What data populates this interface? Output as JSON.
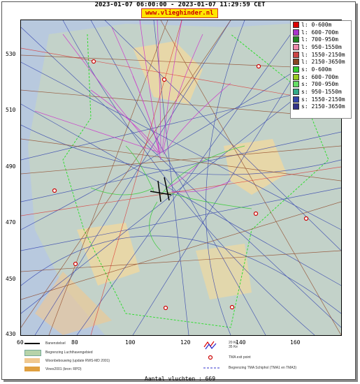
{
  "header": {
    "title": "2023-01-07 06:00:00 - 2023-01-07 11:29:59 CET",
    "url": "www.vlieghinder.nl"
  },
  "axes": {
    "y_ticks": [
      "530",
      "510",
      "490",
      "470",
      "450",
      "430"
    ],
    "x_ticks": [
      "60",
      "80",
      "100",
      "120",
      "140",
      "160"
    ]
  },
  "legend": {
    "items": [
      {
        "label": "l: 0-600m",
        "color": "#dd0000"
      },
      {
        "label": "l: 600-700m",
        "color": "#aa33cc"
      },
      {
        "label": "l: 700-950m",
        "color": "#228822"
      },
      {
        "label": "l: 950-1550m",
        "color": "#ee88aa"
      },
      {
        "label": "l: 1550-2150m",
        "color": "#cc4444"
      },
      {
        "label": "l: 2150-3650m",
        "color": "#884422"
      },
      {
        "label": "s: 0-600m",
        "color": "#33cc33"
      },
      {
        "label": "s: 600-700m",
        "color": "#99cc22"
      },
      {
        "label": "s: 700-950m",
        "color": "#66dd66"
      },
      {
        "label": "s: 950-1550m",
        "color": "#33aa88"
      },
      {
        "label": "s: 1550-2150m",
        "color": "#3344aa"
      },
      {
        "label": "s: 2150-3650m",
        "color": "#333388"
      }
    ]
  },
  "map_legend": {
    "left": [
      {
        "label": "Banenstelsel",
        "color": "#000000"
      },
      {
        "label": "Begrenzing Luchthavengebied",
        "color": "#b7d3a8"
      },
      {
        "label": "Woonbebouwing (update RWS-MD 2001)",
        "color": "#f0c890"
      },
      {
        "label": "Vinex2001 (bron: RPD)",
        "color": "#e0a040"
      }
    ],
    "right": [
      {
        "label": "20 Ke"
      },
      {
        "label": "35 Ke"
      },
      {
        "label": "TMA exit point"
      },
      {
        "label": "Begrenzing TMA Schiphol  (TMA1 en TMA3)"
      }
    ]
  },
  "footer": {
    "count": "Aantal vluchten : 669"
  }
}
